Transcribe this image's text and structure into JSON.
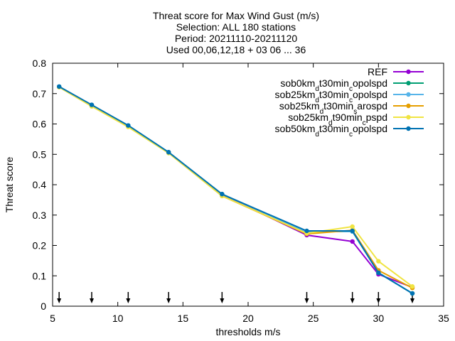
{
  "chart_data": {
    "type": "line",
    "title_lines": [
      "Threat score  for Max Wind Gust (m/s)",
      "Selection: ALL    180 stations",
      "Period: 20211110-20211120",
      "Used 00,06,12,18 + 03 06 ... 36"
    ],
    "xlabel": "thresholds m/s",
    "ylabel": "Threat score",
    "xlim": [
      5,
      35
    ],
    "ylim": [
      0,
      0.8
    ],
    "x_ticks": [
      5,
      10,
      15,
      20,
      25,
      30,
      35
    ],
    "y_ticks": [
      0,
      0.1,
      0.2,
      0.3,
      0.4,
      0.5,
      0.6,
      0.7,
      0.8
    ],
    "x_tick_labels": [
      "5",
      "10",
      "15",
      "20",
      "25",
      "30",
      "35"
    ],
    "y_tick_labels": [
      "0",
      "0.1",
      "0.2",
      "0.3",
      "0.4",
      "0.5",
      "0.6",
      "0.7",
      "0.8"
    ],
    "grid": false,
    "legend_position": "top-right",
    "threshold_markers_x": [
      5.5,
      8,
      10.8,
      13.9,
      18,
      24.5,
      28,
      30,
      32.6
    ],
    "x": [
      5.5,
      8,
      10.8,
      13.9,
      18,
      24.5,
      28,
      30,
      32.6
    ],
    "series": [
      {
        "legend": {
          "base": "REF",
          "parts": []
        },
        "color": "#9400d3",
        "values": [
          0.722,
          0.661,
          0.594,
          0.506,
          0.368,
          0.234,
          0.213,
          0.105,
          0.062
        ]
      },
      {
        "legend": {
          "base": "sob0km",
          "parts": [
            [
              "d",
              "t30min"
            ],
            [
              "c",
              "opolspd"
            ]
          ]
        },
        "color": "#009e73",
        "values": [
          0.723,
          0.662,
          0.595,
          0.507,
          0.369,
          0.245,
          0.246,
          0.11,
          0.042
        ]
      },
      {
        "legend": {
          "base": "sob25km",
          "parts": [
            [
              "d",
              "t30min"
            ],
            [
              "c",
              "opolspd"
            ]
          ]
        },
        "color": "#56b4e9",
        "values": [
          0.723,
          0.662,
          0.595,
          0.507,
          0.369,
          0.245,
          0.246,
          0.11,
          0.042
        ]
      },
      {
        "legend": {
          "base": "sob25km",
          "parts": [
            [
              "d",
              "t30min"
            ],
            [
              "s",
              "arospd"
            ]
          ]
        },
        "color": "#e69f00",
        "values": [
          0.722,
          0.66,
          0.591,
          0.505,
          0.363,
          0.238,
          0.25,
          0.118,
          0.06
        ]
      },
      {
        "legend": {
          "base": "sob25km",
          "parts": [
            [
              "d",
              "t90min"
            ],
            [
              "c",
              "pspd"
            ]
          ]
        },
        "color": "#f0e442",
        "values": [
          0.721,
          0.658,
          0.59,
          0.504,
          0.363,
          0.24,
          0.262,
          0.148,
          0.065
        ]
      },
      {
        "legend": {
          "base": "sob50km",
          "parts": [
            [
              "d",
              "t30min"
            ],
            [
              "c",
              "opolspd"
            ]
          ]
        },
        "color": "#0072b2",
        "values": [
          0.723,
          0.663,
          0.595,
          0.507,
          0.369,
          0.248,
          0.248,
          0.11,
          0.042
        ]
      }
    ]
  }
}
